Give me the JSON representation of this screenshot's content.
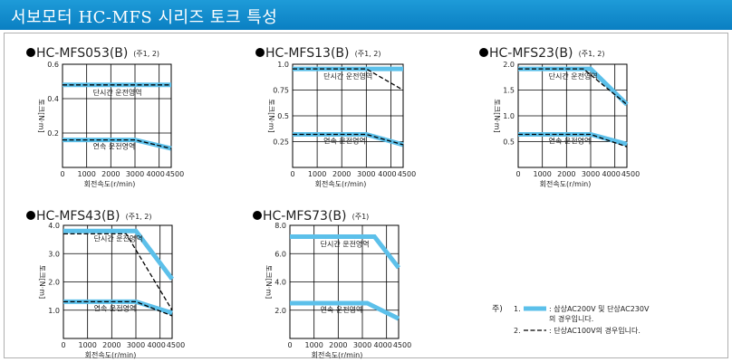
{
  "header": {
    "title": "서보모터 HC-MFS 시리즈 토크 특성"
  },
  "colors": {
    "banner": "#0a7fc2",
    "continuous_band": "#5cc0ea",
    "dashed": "#000000"
  },
  "shared": {
    "xlabel": "회전속도(r/min)",
    "ylabel": "토크[N·m]"
  },
  "chart_data": [
    {
      "type": "line",
      "title": "HC-MFS053(B)",
      "note": "(주1, 2)",
      "xlim": [
        0,
        4500
      ],
      "x_ticks": [
        "0",
        "1000",
        "2000",
        "3000",
        "4000",
        "4500"
      ],
      "ylim": [
        0,
        0.6
      ],
      "y_ticks": [
        {
          "v": 0.2,
          "label": "0.2"
        },
        {
          "v": 0.4,
          "label": "0.4"
        },
        {
          "v": 0.6,
          "label": "0.6"
        }
      ],
      "series": [
        {
          "name": "단시간 운전영역",
          "style": "band",
          "x": [
            0,
            4500
          ],
          "y": [
            0.48,
            0.48
          ]
        },
        {
          "name": "연속 운전영역",
          "style": "band",
          "x": [
            0,
            3000,
            4500
          ],
          "y": [
            0.16,
            0.16,
            0.11
          ]
        },
        {
          "style": "dash",
          "x": [
            0,
            4500
          ],
          "y": [
            0.48,
            0.48
          ]
        },
        {
          "style": "dash",
          "x": [
            0,
            3000,
            4500
          ],
          "y": [
            0.16,
            0.16,
            0.11
          ]
        }
      ]
    },
    {
      "type": "line",
      "title": "HC-MFS13(B)",
      "note": "(주1, 2)",
      "xlim": [
        0,
        4500
      ],
      "x_ticks": [
        "0",
        "1000",
        "2000",
        "3000",
        "4000",
        "4500"
      ],
      "ylim": [
        0,
        1.0
      ],
      "y_ticks": [
        {
          "v": 0.25,
          "label": "0.25"
        },
        {
          "v": 0.5,
          "label": "0.5"
        },
        {
          "v": 0.75,
          "label": "0.75"
        },
        {
          "v": 1.0,
          "label": "1.0"
        }
      ],
      "series": [
        {
          "name": "단시간 운전영역",
          "style": "band",
          "x": [
            0,
            4500
          ],
          "y": [
            0.955,
            0.955
          ]
        },
        {
          "name": "연속 운전영역",
          "style": "band",
          "x": [
            0,
            3000,
            4500
          ],
          "y": [
            0.32,
            0.32,
            0.22
          ]
        },
        {
          "style": "dash",
          "x": [
            0,
            3000,
            4500
          ],
          "y": [
            0.955,
            0.955,
            0.75
          ]
        },
        {
          "style": "dash",
          "x": [
            0,
            3000,
            4500
          ],
          "y": [
            0.32,
            0.32,
            0.22
          ]
        }
      ]
    },
    {
      "type": "line",
      "title": "HC-MFS23(B)",
      "note": "(주1, 2)",
      "xlim": [
        0,
        4500
      ],
      "x_ticks": [
        "0",
        "1000",
        "2000",
        "3000",
        "4000",
        "4500"
      ],
      "ylim": [
        0,
        2.0
      ],
      "y_ticks": [
        {
          "v": 0.5,
          "label": "0.5"
        },
        {
          "v": 1.0,
          "label": "1.0"
        },
        {
          "v": 1.5,
          "label": "1.5"
        },
        {
          "v": 2.0,
          "label": "2.0"
        }
      ],
      "series": [
        {
          "name": "단시간 운전영역",
          "style": "band",
          "x": [
            0,
            3000,
            4500
          ],
          "y": [
            1.91,
            1.91,
            1.22
          ]
        },
        {
          "name": "연속 운전영역",
          "style": "band",
          "x": [
            0,
            3000,
            4500
          ],
          "y": [
            0.64,
            0.64,
            0.45
          ]
        },
        {
          "style": "dash",
          "x": [
            0,
            2700,
            4500
          ],
          "y": [
            1.91,
            1.91,
            1.22
          ]
        },
        {
          "style": "dash",
          "x": [
            0,
            3000,
            4500
          ],
          "y": [
            0.64,
            0.64,
            0.4
          ]
        }
      ]
    },
    {
      "type": "line",
      "title": "HC-MFS43(B)",
      "note": "(주1, 2)",
      "xlim": [
        0,
        4500
      ],
      "x_ticks": [
        "0",
        "1000",
        "2000",
        "3000",
        "4000",
        "4500"
      ],
      "ylim": [
        0,
        4.0
      ],
      "y_ticks": [
        {
          "v": 1.0,
          "label": "1.0"
        },
        {
          "v": 2.0,
          "label": "2.0"
        },
        {
          "v": 3.0,
          "label": "3.0"
        },
        {
          "v": 4.0,
          "label": "4.0"
        }
      ],
      "series": [
        {
          "name": "단시간 운전영역",
          "style": "band",
          "x": [
            0,
            3000,
            4500
          ],
          "y": [
            3.8,
            3.8,
            2.1
          ]
        },
        {
          "name": "연속 운전영역",
          "style": "band",
          "x": [
            0,
            3000,
            4500
          ],
          "y": [
            1.3,
            1.3,
            0.9
          ]
        },
        {
          "style": "dash",
          "x": [
            0,
            2600,
            4500
          ],
          "y": [
            3.7,
            3.7,
            1.0
          ]
        },
        {
          "style": "dash",
          "x": [
            0,
            3000,
            4500
          ],
          "y": [
            1.3,
            1.3,
            0.8
          ]
        }
      ]
    },
    {
      "type": "line",
      "title": "HC-MFS73(B)",
      "note": "(주1)",
      "xlim": [
        0,
        4500
      ],
      "x_ticks": [
        "0",
        "1000",
        "2000",
        "3000",
        "4000",
        "4500"
      ],
      "ylim": [
        0,
        8.0
      ],
      "y_ticks": [
        {
          "v": 2.0,
          "label": "2.0"
        },
        {
          "v": 4.0,
          "label": "4.0"
        },
        {
          "v": 6.0,
          "label": "6.0"
        },
        {
          "v": 8.0,
          "label": "8.0"
        }
      ],
      "series": [
        {
          "name": "단시간 운전영역",
          "style": "band",
          "x": [
            0,
            3500,
            4500
          ],
          "y": [
            7.2,
            7.2,
            5.0
          ]
        },
        {
          "name": "연속 운전영역",
          "style": "band",
          "x": [
            0,
            3200,
            4500
          ],
          "y": [
            2.5,
            2.5,
            1.4
          ]
        }
      ]
    }
  ],
  "legend": {
    "prefix": "주)",
    "items": [
      {
        "num": "1.",
        "style": "band",
        "line1": ": 삼상AC200V 및 단상AC230V",
        "line2": "의 경우입니다."
      },
      {
        "num": "2.",
        "style": "dash",
        "line1": ": 단상AC100V의 경우입니다."
      }
    ]
  }
}
